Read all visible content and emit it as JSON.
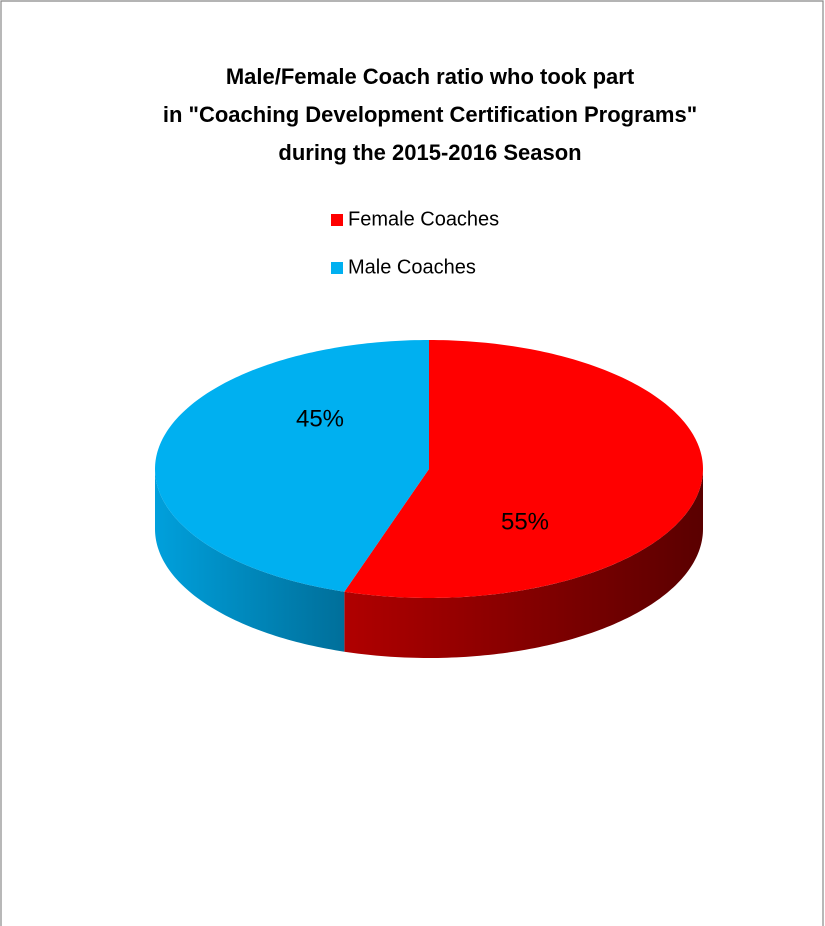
{
  "chart_data": {
    "type": "pie",
    "title": [
      "Male/Female Coach ratio who took part",
      "in \"Coaching Development Certification Programs\"",
      "during the 2015-2016 Season"
    ],
    "categories": [
      "Female Coaches",
      "Male Coaches"
    ],
    "values": [
      55,
      45
    ],
    "value_labels": [
      "55%",
      "45%"
    ],
    "colors": [
      "#ff0000",
      "#00b0f0"
    ],
    "legend": "top"
  }
}
